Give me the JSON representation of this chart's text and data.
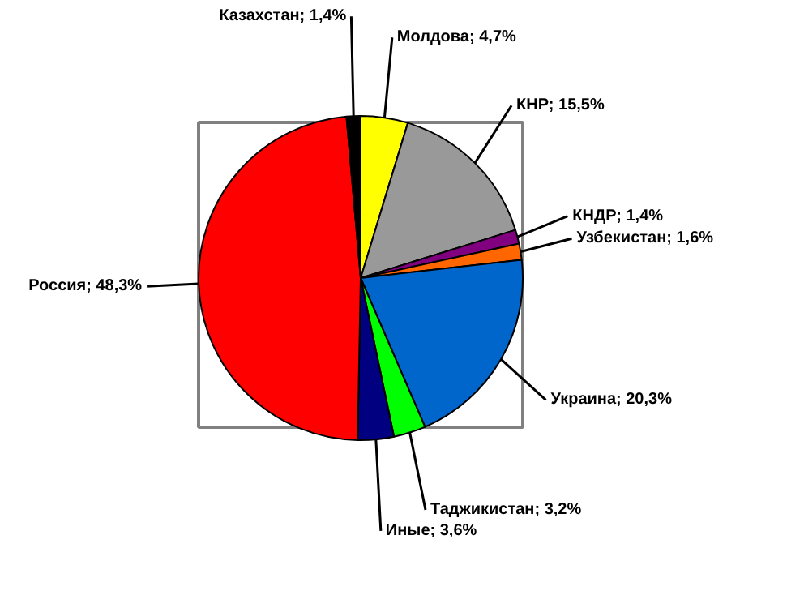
{
  "chart_data": {
    "type": "pie",
    "categories": [
      "Молдова; 4,7%",
      "КНР; 15,5%",
      "КНДР; 1,4%",
      "Узбекистан; 1,6%",
      "Украина; 20,3%",
      "Таджикистан; 3,2%",
      "Иные; 3,6%",
      "Россия; 48,3%",
      "Казахстан; 1,4%"
    ],
    "values": [
      4.7,
      15.5,
      1.4,
      1.6,
      20.3,
      3.2,
      3.6,
      48.3,
      1.4
    ],
    "colors": [
      "#ffff00",
      "#999999",
      "#800080",
      "#ff6600",
      "#0066cc",
      "#00ff00",
      "#000080",
      "#ff0000",
      "#000000"
    ]
  }
}
